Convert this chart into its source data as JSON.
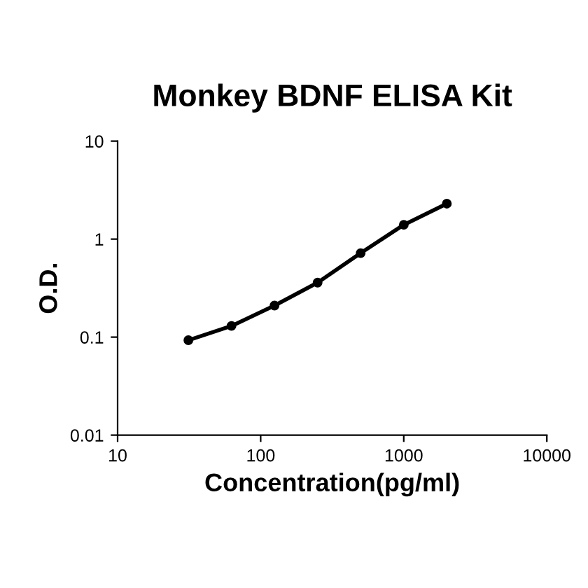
{
  "chart_data": {
    "type": "line",
    "title": "Monkey BDNF ELISA Kit",
    "xlabel": "Concentration(pg/ml)",
    "ylabel": "O.D.",
    "x": [
      31.25,
      62.5,
      125,
      250,
      500,
      1000,
      2000
    ],
    "series": [
      {
        "color": "#000000",
        "values": [
          0.093,
          0.13,
          0.21,
          0.36,
          0.72,
          1.4,
          2.3
        ]
      }
    ],
    "log": "xy",
    "xlim": [
      10,
      10000
    ],
    "ylim": [
      0.01,
      10
    ],
    "xticks": [
      10,
      100,
      1000,
      10000
    ],
    "yticks": [
      0.01,
      0.1,
      1,
      10
    ],
    "grid": false,
    "legend": false,
    "marker": "circle",
    "line_style": "solid"
  }
}
